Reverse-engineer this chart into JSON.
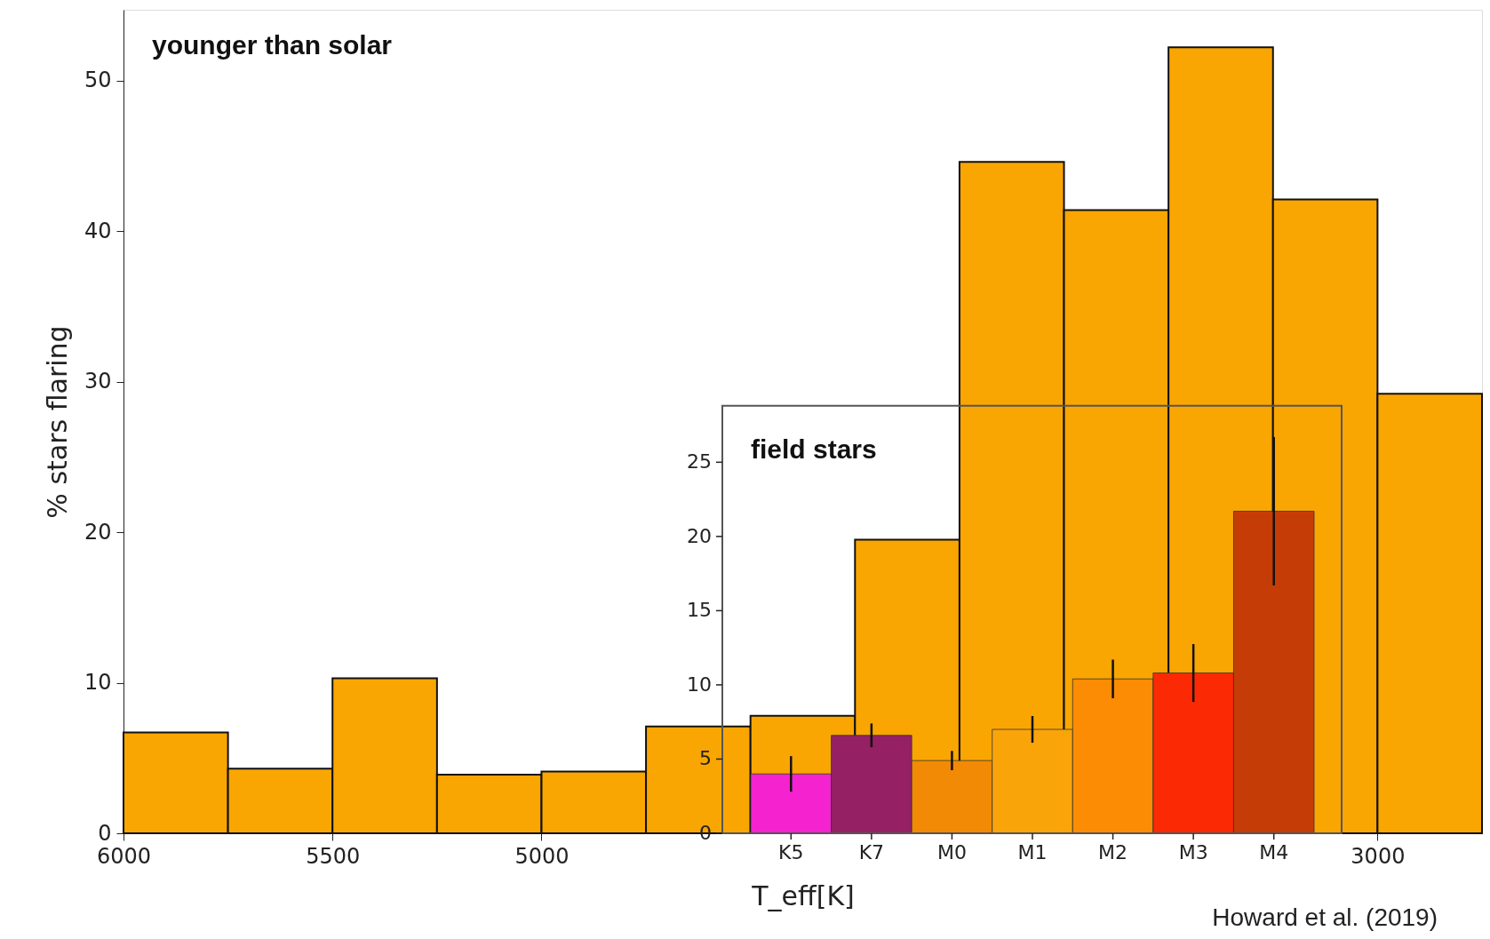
{
  "chart_data": [
    {
      "type": "histogram",
      "title": "younger than solar",
      "xlabel": "T_eff[K]",
      "ylabel": "% stars flaring",
      "bins": [
        6000,
        5750,
        5500,
        5250,
        5000,
        4750,
        4500,
        4250,
        4000,
        3750,
        3500,
        3250,
        3000,
        2750
      ],
      "values": [
        6.7,
        4.3,
        10.3,
        3.9,
        4.1,
        7.1,
        7.8,
        19.5,
        44.6,
        41.4,
        52.2,
        42.1,
        29.2
      ],
      "color": "#f9a602",
      "xlim": [
        6000,
        2750
      ],
      "xticks": [
        6000,
        5500,
        5000,
        3000
      ],
      "ylim": [
        0,
        54.7
      ],
      "yticks": [
        0,
        10,
        20,
        30,
        40,
        50
      ],
      "grid": false,
      "annotations": [
        "Howard et al. (2019)"
      ]
    },
    {
      "type": "bar",
      "title": "field stars",
      "categories": [
        "K5",
        "K7",
        "M0",
        "M1",
        "M2",
        "M3",
        "M4"
      ],
      "values": [
        4.0,
        6.6,
        4.9,
        7.0,
        10.4,
        10.8,
        21.7
      ],
      "colors": [
        "#f522d0",
        "#952064",
        "#f28a05",
        "#f9a50a",
        "#fb8c04",
        "#fc2a04",
        "#c63c06"
      ],
      "errors": [
        1.2,
        0.8,
        0.65,
        0.9,
        1.3,
        1.95,
        5.0
      ],
      "ylim": [
        0,
        28.8
      ],
      "yticks": [
        0,
        5,
        10,
        15,
        20,
        25
      ],
      "grid": false
    }
  ]
}
